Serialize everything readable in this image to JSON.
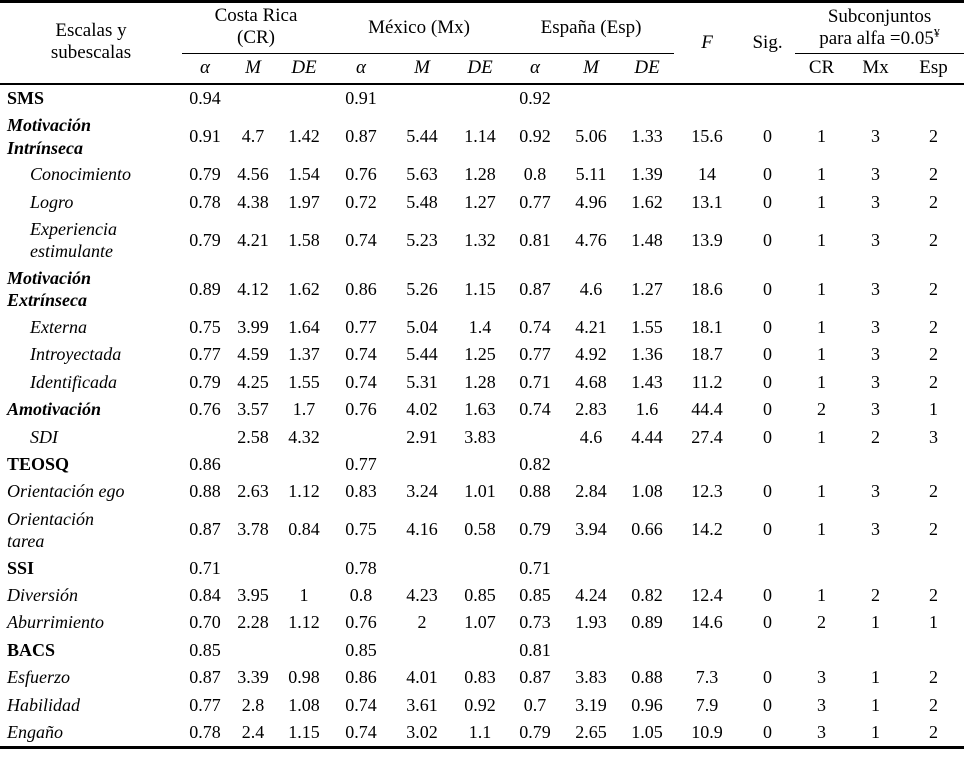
{
  "table": {
    "col1_header": "Escalas y subescalas",
    "groups": [
      {
        "label": "Costa Rica (CR)",
        "subcols": [
          "α",
          "M",
          "DE"
        ]
      },
      {
        "label": "México (Mx)",
        "subcols": [
          "α",
          "M",
          "DE"
        ]
      },
      {
        "label": "España (Esp)",
        "subcols": [
          "α",
          "M",
          "DE"
        ]
      }
    ],
    "f_header": "F",
    "sig_header": "Sig.",
    "subsets_header_line1": "Subconjuntos",
    "subsets_header_line2": "para alfa =0.05",
    "subsets_footnote_mark": "¥",
    "subsets_subcols": [
      "CR",
      "Mx",
      "Esp"
    ],
    "rows": [
      {
        "label": "SMS",
        "style": "bold",
        "indent": false,
        "wrap": false,
        "values": [
          "0.94",
          "",
          "",
          "0.91",
          "",
          "",
          "0.92",
          "",
          "",
          "",
          "",
          "",
          "",
          ""
        ]
      },
      {
        "label": "Motivación Intrínseca",
        "style": "bolditalic",
        "indent": false,
        "wrap": true,
        "values": [
          "0.91",
          "4.7",
          "1.42",
          "0.87",
          "5.44",
          "1.14",
          "0.92",
          "5.06",
          "1.33",
          "15.6",
          "0",
          "1",
          "3",
          "2"
        ]
      },
      {
        "label": "Conocimiento",
        "style": "italic",
        "indent": true,
        "wrap": false,
        "values": [
          "0.79",
          "4.56",
          "1.54",
          "0.76",
          "5.63",
          "1.28",
          "0.8",
          "5.11",
          "1.39",
          "14",
          "0",
          "1",
          "3",
          "2"
        ]
      },
      {
        "label": "Logro",
        "style": "italic",
        "indent": true,
        "wrap": false,
        "values": [
          "0.78",
          "4.38",
          "1.97",
          "0.72",
          "5.48",
          "1.27",
          "0.77",
          "4.96",
          "1.62",
          "13.1",
          "0",
          "1",
          "3",
          "2"
        ]
      },
      {
        "label": "Experiencia estimulante",
        "style": "italic",
        "indent": true,
        "wrap": true,
        "values": [
          "0.79",
          "4.21",
          "1.58",
          "0.74",
          "5.23",
          "1.32",
          "0.81",
          "4.76",
          "1.48",
          "13.9",
          "0",
          "1",
          "3",
          "2"
        ]
      },
      {
        "label": "Motivación Extrínseca",
        "style": "bolditalic",
        "indent": false,
        "wrap": true,
        "values": [
          "0.89",
          "4.12",
          "1.62",
          "0.86",
          "5.26",
          "1.15",
          "0.87",
          "4.6",
          "1.27",
          "18.6",
          "0",
          "1",
          "3",
          "2"
        ]
      },
      {
        "label": "Externa",
        "style": "italic",
        "indent": true,
        "wrap": false,
        "values": [
          "0.75",
          "3.99",
          "1.64",
          "0.77",
          "5.04",
          "1.4",
          "0.74",
          "4.21",
          "1.55",
          "18.1",
          "0",
          "1",
          "3",
          "2"
        ]
      },
      {
        "label": "Introyectada",
        "style": "italic",
        "indent": true,
        "wrap": false,
        "values": [
          "0.77",
          "4.59",
          "1.37",
          "0.74",
          "5.44",
          "1.25",
          "0.77",
          "4.92",
          "1.36",
          "18.7",
          "0",
          "1",
          "3",
          "2"
        ]
      },
      {
        "label": "Identificada",
        "style": "italic",
        "indent": true,
        "wrap": false,
        "values": [
          "0.79",
          "4.25",
          "1.55",
          "0.74",
          "5.31",
          "1.28",
          "0.71",
          "4.68",
          "1.43",
          "11.2",
          "0",
          "1",
          "3",
          "2"
        ]
      },
      {
        "label": "Amotivación",
        "style": "bolditalic",
        "indent": false,
        "wrap": false,
        "values": [
          "0.76",
          "3.57",
          "1.7",
          "0.76",
          "4.02",
          "1.63",
          "0.74",
          "2.83",
          "1.6",
          "44.4",
          "0",
          "2",
          "3",
          "1"
        ]
      },
      {
        "label": "SDI",
        "style": "italic",
        "indent": true,
        "wrap": false,
        "values": [
          "",
          "2.58",
          "4.32",
          "",
          "2.91",
          "3.83",
          "",
          "4.6",
          "4.44",
          "27.4",
          "0",
          "1",
          "2",
          "3"
        ]
      },
      {
        "label": "TEOSQ",
        "style": "bold",
        "indent": false,
        "wrap": false,
        "values": [
          "0.86",
          "",
          "",
          "0.77",
          "",
          "",
          "0.82",
          "",
          "",
          "",
          "",
          "",
          "",
          ""
        ]
      },
      {
        "label": "Orientación ego",
        "style": "italic",
        "indent": false,
        "wrap": false,
        "values": [
          "0.88",
          "2.63",
          "1.12",
          "0.83",
          "3.24",
          "1.01",
          "0.88",
          "2.84",
          "1.08",
          "12.3",
          "0",
          "1",
          "3",
          "2"
        ]
      },
      {
        "label": "Orientación tarea",
        "style": "italic",
        "indent": false,
        "wrap": true,
        "values": [
          "0.87",
          "3.78",
          "0.84",
          "0.75",
          "4.16",
          "0.58",
          "0.79",
          "3.94",
          "0.66",
          "14.2",
          "0",
          "1",
          "3",
          "2"
        ]
      },
      {
        "label": "SSI",
        "style": "bold",
        "indent": false,
        "wrap": false,
        "values": [
          "0.71",
          "",
          "",
          "0.78",
          "",
          "",
          "0.71",
          "",
          "",
          "",
          "",
          "",
          "",
          ""
        ]
      },
      {
        "label": "Diversión",
        "style": "italic",
        "indent": false,
        "wrap": false,
        "values": [
          "0.84",
          "3.95",
          "1",
          "0.8",
          "4.23",
          "0.85",
          "0.85",
          "4.24",
          "0.82",
          "12.4",
          "0",
          "1",
          "2",
          "2"
        ]
      },
      {
        "label": "Aburrimiento",
        "style": "italic",
        "indent": false,
        "wrap": false,
        "values": [
          "0.70",
          "2.28",
          "1.12",
          "0.76",
          "2",
          "1.07",
          "0.73",
          "1.93",
          "0.89",
          "14.6",
          "0",
          "2",
          "1",
          "1"
        ]
      },
      {
        "label": "BACS",
        "style": "bold",
        "indent": false,
        "wrap": false,
        "values": [
          "0.85",
          "",
          "",
          "0.85",
          "",
          "",
          "0.81",
          "",
          "",
          "",
          "",
          "",
          "",
          ""
        ]
      },
      {
        "label": "Esfuerzo",
        "style": "italic",
        "indent": false,
        "wrap": false,
        "values": [
          "0.87",
          "3.39",
          "0.98",
          "0.86",
          "4.01",
          "0.83",
          "0.87",
          "3.83",
          "0.88",
          "7.3",
          "0",
          "3",
          "1",
          "2"
        ]
      },
      {
        "label": "Habilidad",
        "style": "italic",
        "indent": false,
        "wrap": false,
        "values": [
          "0.77",
          "2.8",
          "1.08",
          "0.74",
          "3.61",
          "0.92",
          "0.7",
          "3.19",
          "0.96",
          "7.9",
          "0",
          "3",
          "1",
          "2"
        ]
      },
      {
        "label": "Engaño",
        "style": "italic",
        "indent": false,
        "wrap": false,
        "values": [
          "0.78",
          "2.4",
          "1.15",
          "0.74",
          "3.02",
          "1.1",
          "0.79",
          "2.65",
          "1.05",
          "10.9",
          "0",
          "3",
          "1",
          "2"
        ]
      }
    ]
  }
}
